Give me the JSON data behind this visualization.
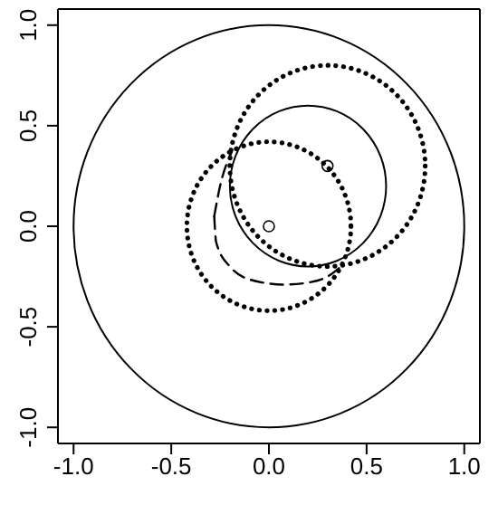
{
  "chart_data": {
    "type": "line",
    "xlim": [
      -1.08,
      1.08
    ],
    "ylim": [
      -1.08,
      1.08
    ],
    "xticks": [
      {
        "value": -1,
        "label": "-1.0"
      },
      {
        "value": -0.5,
        "label": "-0.5"
      },
      {
        "value": 0,
        "label": "0.0"
      },
      {
        "value": 0.5,
        "label": "0.5"
      },
      {
        "value": 1,
        "label": "1.0"
      }
    ],
    "yticks": [
      {
        "value": -1,
        "label": "-1.0"
      },
      {
        "value": -0.5,
        "label": "-0.5"
      },
      {
        "value": 0,
        "label": "0.0"
      },
      {
        "value": 0.5,
        "label": "0.5"
      },
      {
        "value": 1,
        "label": "1.0"
      }
    ],
    "grid": false,
    "legend": false,
    "series": [
      {
        "color": "#000000",
        "line_style": "dashed",
        "x": [
          -0.28,
          -0.25,
          -0.19
        ],
        "values": [
          0.05,
          0.2,
          0.37
        ]
      },
      {
        "color": "#000000",
        "line_style": "dashed",
        "x": [
          -0.28,
          -0.27,
          -0.2,
          -0.08,
          0.08,
          0.2,
          0.3,
          0.38
        ],
        "values": [
          0.05,
          -0.08,
          -0.2,
          -0.27,
          -0.29,
          -0.28,
          -0.25,
          -0.19
        ]
      },
      {
        "type": "scatter",
        "color": "#000000",
        "marker": "circle",
        "x": [
          0,
          0.3
        ],
        "values": [
          0,
          0.3
        ]
      }
    ]
  }
}
